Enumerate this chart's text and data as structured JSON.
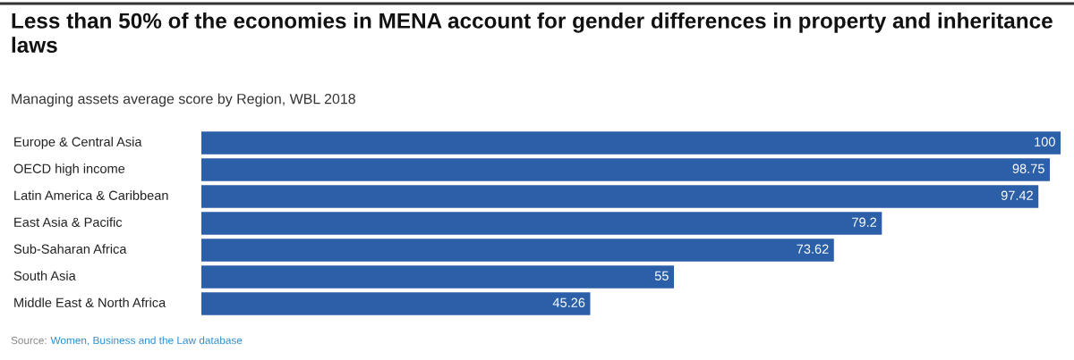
{
  "chart_data": {
    "type": "bar",
    "orientation": "horizontal",
    "title": "Less than 50% of the economies in MENA account for gender differences in property and inheritance laws",
    "subtitle": "Managing assets average score by Region, WBL 2018",
    "categories": [
      "Europe & Central Asia",
      "OECD high income",
      "Latin America & Caribbean",
      "East Asia & Pacific",
      "Sub-Saharan Africa",
      "South Asia",
      "Middle East & North Africa"
    ],
    "values": [
      100,
      98.75,
      97.42,
      79.2,
      73.62,
      55,
      45.26
    ],
    "color": "#2b5fa8",
    "data_labels": true,
    "annotations": [
      "Source:",
      "Women, Business and the Law database"
    ]
  }
}
